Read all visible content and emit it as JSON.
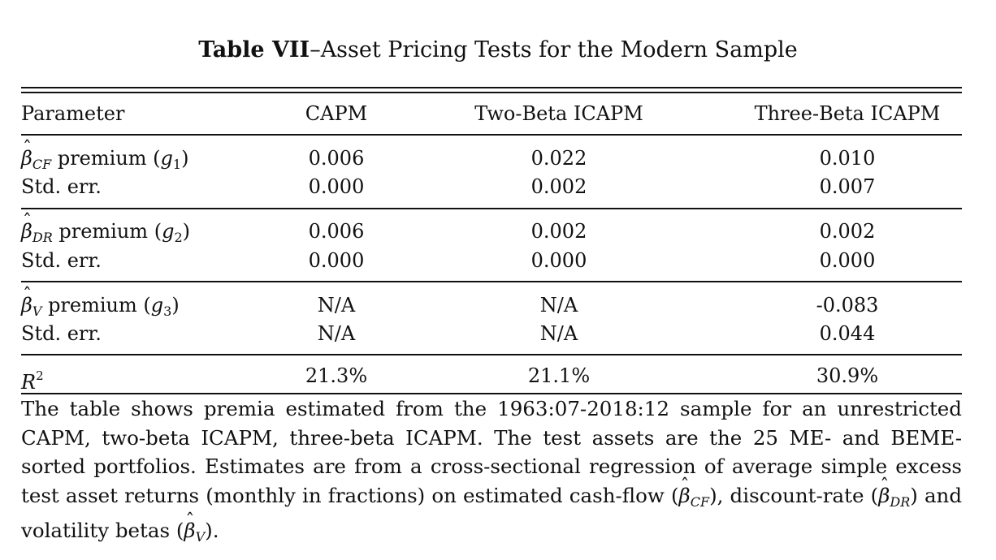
{
  "table": {
    "title_bold": "Table VII",
    "title_rest": "–Asset Pricing Tests for the Modern Sample",
    "headers": [
      "Parameter",
      "CAPM",
      "Two-Beta ICAPM",
      "Three-Beta ICAPM"
    ],
    "groups": [
      {
        "symbol": "β",
        "symbol_sub": "CF",
        "label_suffix": " premium (",
        "g_var": "g",
        "g_sub": "1",
        "label_close": ")",
        "values": [
          "0.006",
          "0.022",
          "0.010"
        ],
        "se_label": "Std. err.",
        "se_values": [
          "0.000",
          "0.002",
          "0.007"
        ]
      },
      {
        "symbol": "β",
        "symbol_sub": "DR",
        "label_suffix": " premium (",
        "g_var": "g",
        "g_sub": "2",
        "label_close": ")",
        "values": [
          "0.006",
          "0.002",
          "0.002"
        ],
        "se_label": "Std. err.",
        "se_values": [
          "0.000",
          "0.000",
          "0.000"
        ]
      },
      {
        "symbol": "β",
        "symbol_sub": "V",
        "label_suffix": " premium (",
        "g_var": "g",
        "g_sub": "3",
        "label_close": ")",
        "values": [
          "N/A",
          "N/A",
          "-0.083"
        ],
        "se_label": "Std. err.",
        "se_values": [
          "N/A",
          "N/A",
          "0.044"
        ]
      }
    ],
    "r2": {
      "var": "R",
      "sup": "2",
      "values": [
        "21.3%",
        "21.1%",
        "30.9%"
      ]
    }
  },
  "caption": {
    "part1": "The table shows premia estimated from the 1963:07-2018:12 sample for an unrestricted CAPM, two-beta ICAPM, three-beta ICAPM. The test assets are the 25 ME- and BEME-sorted portfolios. Estimates are from a cross-sectional regression of average simple excess test asset returns (monthly in fractions) on estimated cash-flow (",
    "sym1": "β",
    "sub1": "CF",
    "part2": "), discount-rate (",
    "sym2": "β",
    "sub2": "DR",
    "part3": ") and volatility betas (",
    "sym3": "β",
    "sub3": "V",
    "part4": ")."
  }
}
